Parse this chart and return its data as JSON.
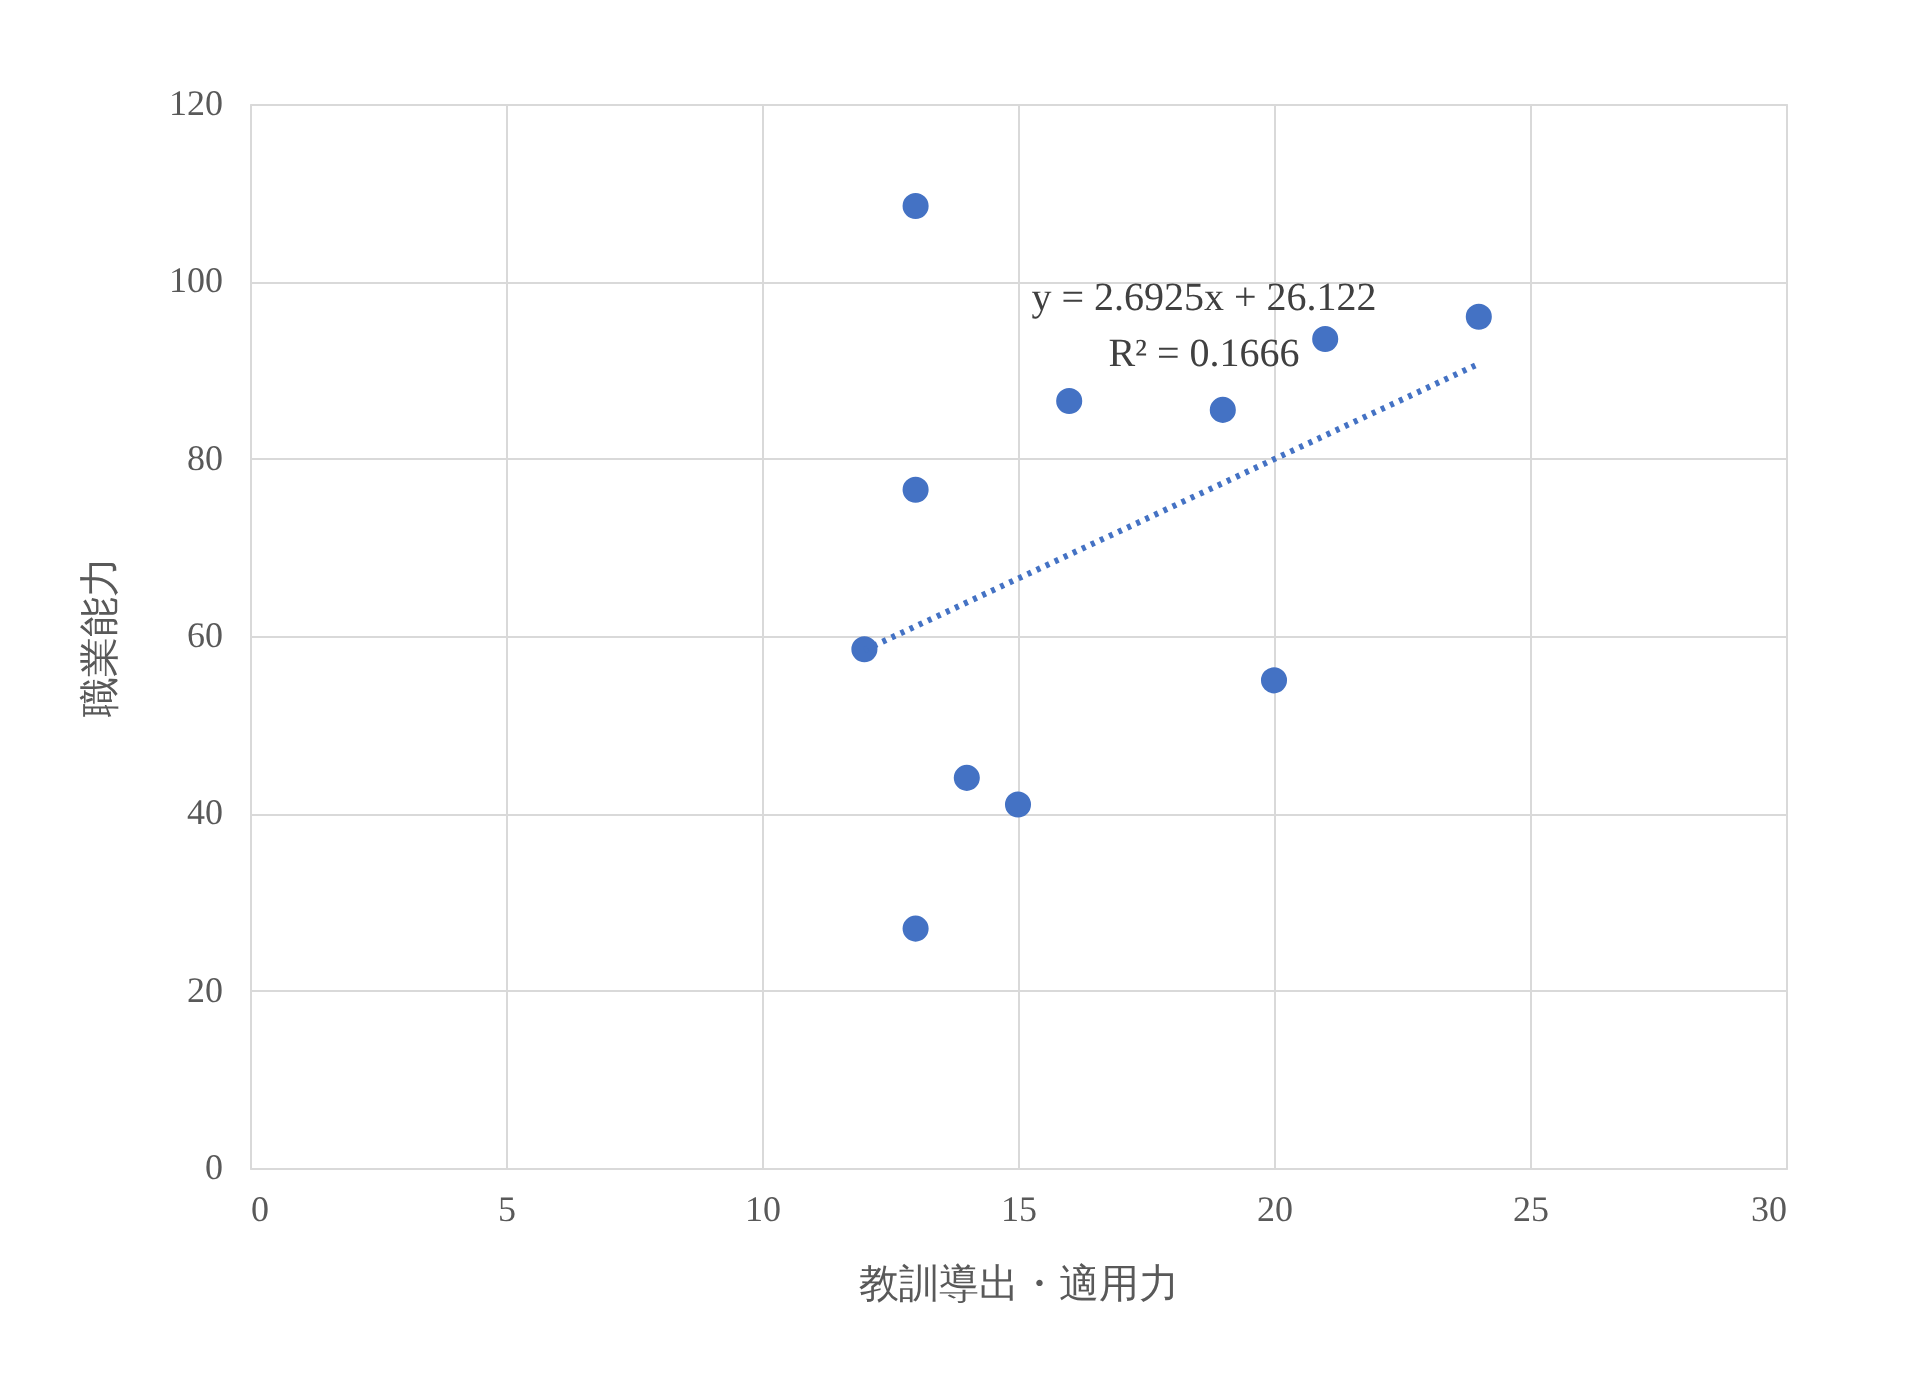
{
  "chart_data": {
    "type": "scatter",
    "xlabel": "教訓導出・適用力",
    "ylabel": "職業能力",
    "xlim": [
      0,
      30
    ],
    "xticks": [
      0,
      5,
      10,
      15,
      20,
      25,
      30
    ],
    "ylim": [
      0,
      120
    ],
    "yticks": [
      0,
      20,
      40,
      60,
      80,
      100,
      120
    ],
    "grid": true,
    "series": [
      {
        "marker": "circle",
        "color": "#4472c4",
        "x": [
          13,
          13,
          12,
          13,
          14,
          15,
          16,
          19,
          20,
          21,
          24
        ],
        "values": [
          108.5,
          76.5,
          58.5,
          27,
          44,
          41,
          86.5,
          85.5,
          55,
          93.5,
          96
        ]
      },
      {
        "type": "line",
        "color": "#4472c4",
        "line_style": "dotted",
        "x": [
          12,
          24
        ],
        "values": [
          58.4,
          90.7
        ]
      }
    ],
    "annotations": [
      "y = 2.6925x + 26.122",
      "R² = 0.1666"
    ]
  }
}
